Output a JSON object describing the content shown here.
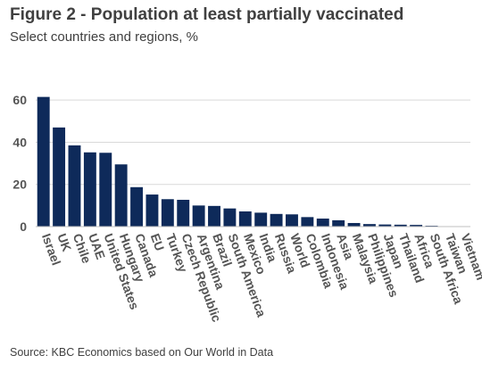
{
  "title": "Figure 2 - Population at least partially vaccinated",
  "subtitle": "Select countries and regions, %",
  "source": "Source: KBC Economics based on Our World in Data",
  "chart_data": {
    "type": "bar",
    "categories": [
      "Israel",
      "UK",
      "Chile",
      "UAE",
      "United States",
      "Hungary",
      "Canada",
      "EU",
      "Turkey",
      "Czech Republic",
      "Argentina",
      "Brazil",
      "South America",
      "Mexico",
      "India",
      "Russia",
      "World",
      "Colombia",
      "Indonesia",
      "Asia",
      "Malaysia",
      "Philippines",
      "Japan",
      "Thailand",
      "Africa",
      "South Africa",
      "Taiwan",
      "Vietnam"
    ],
    "values": [
      61.5,
      47,
      38.5,
      35.2,
      35,
      29.5,
      18.7,
      15.2,
      13,
      12.7,
      10,
      9.8,
      8.6,
      7.2,
      6.6,
      6,
      5.8,
      4.5,
      3.8,
      3,
      1.7,
      1.2,
      1,
      0.9,
      0.8,
      0.4,
      0.1,
      0.1
    ],
    "yticks": [
      0,
      20,
      40,
      60
    ],
    "ylim": [
      0,
      66
    ],
    "bar_color": "#0e2a5a",
    "grid": true
  }
}
